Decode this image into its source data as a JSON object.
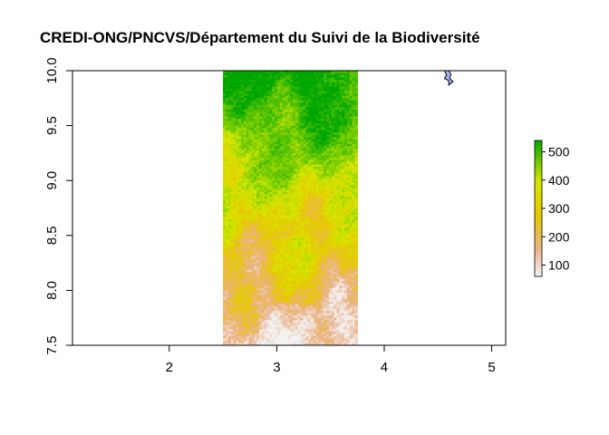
{
  "chart_data": {
    "type": "heatmap",
    "title": "CREDI-ONG/PNCVS/Département du Suivi de la Biodiversité",
    "xlabel": "",
    "ylabel": "",
    "xlim": [
      1.1,
      5.13
    ],
    "ylim": [
      7.5,
      10.0
    ],
    "x_ticks": [
      2,
      3,
      4,
      5
    ],
    "y_ticks": [
      7.5,
      8.0,
      8.5,
      9.0,
      9.5,
      10.0
    ],
    "x_tick_labels": [
      "2",
      "3",
      "4",
      "5"
    ],
    "y_tick_labels": [
      "7.5",
      "8.0",
      "8.5",
      "9.0",
      "9.5",
      "10.0"
    ],
    "raster_extent": {
      "xmin": 2.5,
      "xmax": 3.75,
      "ymin": 7.5,
      "ymax": 10.0
    },
    "raster_description": "elevation raster, low values (pink/tan) in the south, high values (green) in the north",
    "value_range": [
      60,
      540
    ],
    "legend": {
      "ticks": [
        100,
        200,
        300,
        400,
        500
      ],
      "tick_labels": [
        "100",
        "200",
        "300",
        "400",
        "500"
      ],
      "colors": [
        "#f2f2f2",
        "#ebb189",
        "#e6c800",
        "#d6e600",
        "#00a600"
      ]
    },
    "polygon": {
      "fill": "#a7b9f5",
      "stroke": "#000000",
      "points": [
        [
          4.56,
          10.0
        ],
        [
          4.58,
          9.96
        ],
        [
          4.56,
          9.93
        ],
        [
          4.6,
          9.91
        ],
        [
          4.6,
          9.87
        ],
        [
          4.64,
          9.9
        ],
        [
          4.61,
          9.93
        ],
        [
          4.62,
          9.97
        ],
        [
          4.6,
          10.0
        ]
      ]
    },
    "grid": false
  }
}
